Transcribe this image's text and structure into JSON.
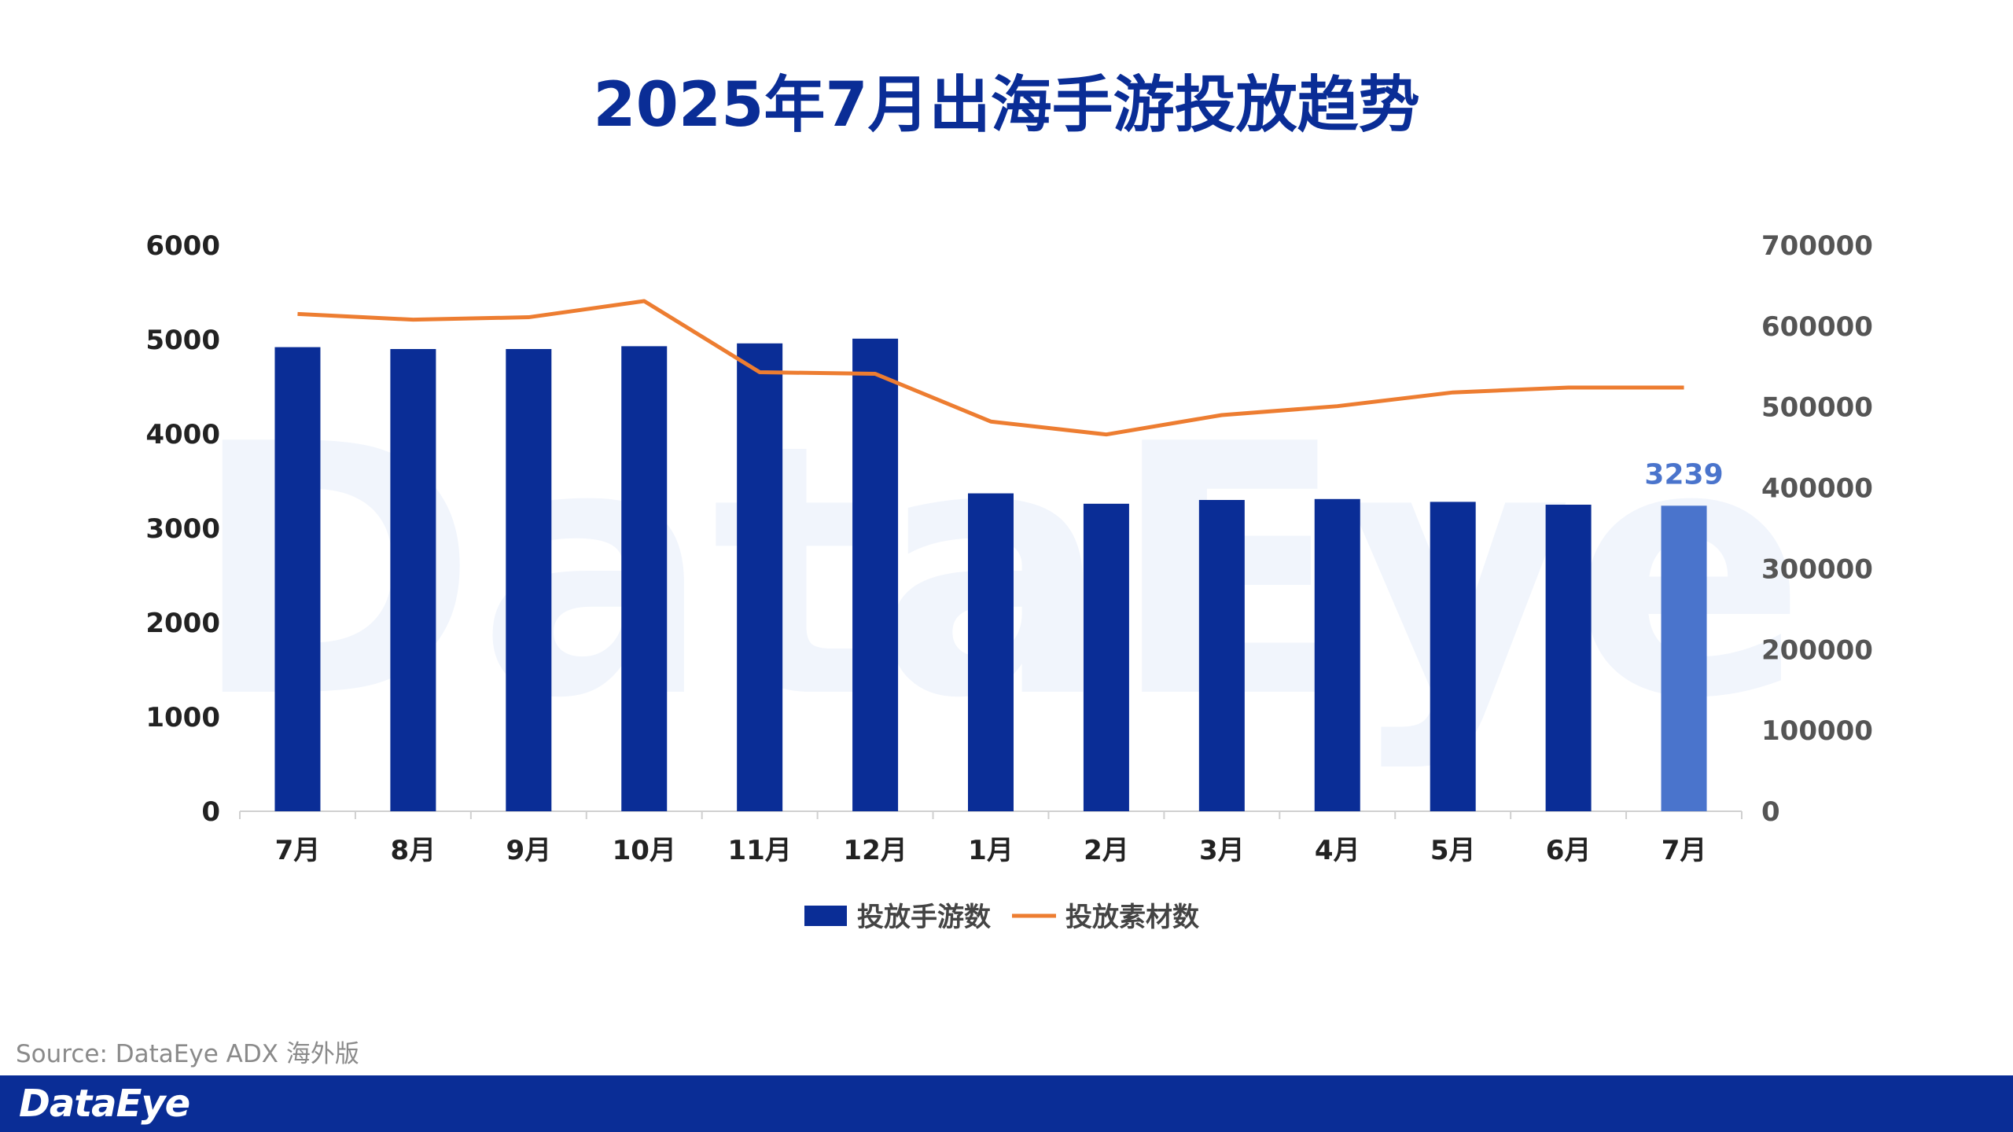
{
  "brand": "DataEye",
  "source": "Source: DataEye ADX 海外版",
  "colors": {
    "bar": "#0a2d96",
    "bar_highlight": "#4a74cc",
    "line": "#ed7d31",
    "title": "#0a2d96",
    "axis_text": "#222222",
    "axis_right_text": "#555555",
    "watermark": "#f1f5fc"
  },
  "chart_data": {
    "type": "bar",
    "title": "2025年7月出海手游投放趋势",
    "categories": [
      "7月",
      "8月",
      "9月",
      "10月",
      "11月",
      "12月",
      "1月",
      "2月",
      "3月",
      "4月",
      "5月",
      "6月",
      "7月"
    ],
    "series": [
      {
        "name": "投放手游数",
        "type": "bar",
        "axis": "left",
        "values": [
          4920,
          4900,
          4900,
          4930,
          4960,
          5010,
          3370,
          3260,
          3300,
          3310,
          3280,
          3250,
          3239
        ]
      },
      {
        "name": "投放素材数",
        "type": "line",
        "axis": "right",
        "values": [
          615000,
          608000,
          611000,
          631000,
          543000,
          541000,
          482000,
          466000,
          490000,
          501000,
          518000,
          524000,
          524000
        ]
      }
    ],
    "y_left": {
      "min": 0,
      "max": 6000,
      "ticks": [
        0,
        1000,
        2000,
        3000,
        4000,
        5000,
        6000
      ]
    },
    "y_right": {
      "min": 0,
      "max": 700000,
      "ticks": [
        0,
        100000,
        200000,
        300000,
        400000,
        500000,
        600000,
        700000
      ]
    },
    "highlight": {
      "index": 12,
      "label": "3239"
    },
    "legend": [
      "投放手游数",
      "投放素材数"
    ],
    "legend_position": "bottom",
    "grid": false
  }
}
